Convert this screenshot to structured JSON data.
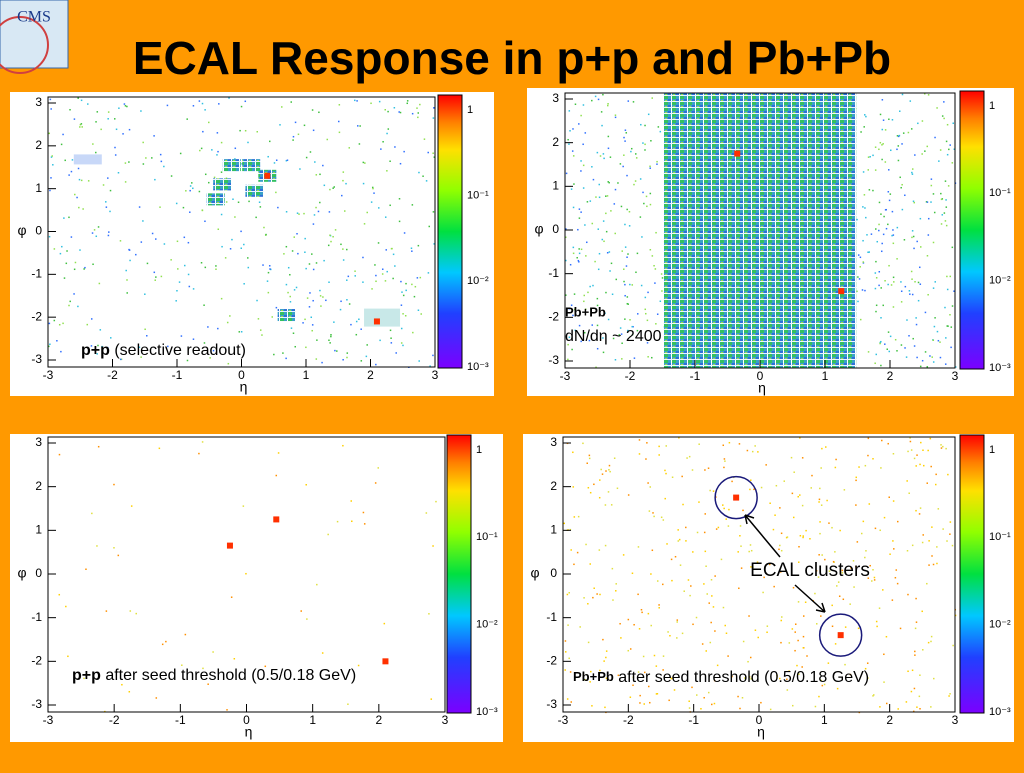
{
  "header": {
    "logo": "CMS",
    "title": "ECAL Response in p+p and Pb+Pb"
  },
  "panels": [
    {
      "x_label": "η",
      "y_label": "φ",
      "x_ticks": [
        -3,
        -2,
        -1,
        0,
        1,
        2,
        3
      ],
      "y_ticks": [
        3,
        2,
        1,
        0,
        -1,
        -2,
        -3
      ],
      "colorbar_ticks": [
        "1",
        "10⁻¹",
        "10⁻²",
        "10⁻³"
      ],
      "label_bold": "p+p",
      "label_text": " (selective readout)"
    },
    {
      "x_label": "η",
      "y_label": "φ",
      "x_ticks": [
        -3,
        -2,
        -1,
        0,
        1,
        2,
        3
      ],
      "y_ticks": [
        3,
        2,
        1,
        0,
        -1,
        -2,
        -3
      ],
      "colorbar_ticks": [
        "1",
        "10⁻¹",
        "10⁻²",
        "10⁻³"
      ],
      "label_bold": "Pb+Pb",
      "label_text": "dN/dη ~ 2400"
    },
    {
      "x_label": "η",
      "y_label": "φ",
      "x_ticks": [
        -3,
        -2,
        -1,
        0,
        1,
        2,
        3
      ],
      "y_ticks": [
        3,
        2,
        1,
        0,
        -1,
        -2,
        -3
      ],
      "colorbar_ticks": [
        "1",
        "10⁻¹",
        "10⁻²",
        "10⁻³"
      ],
      "label_bold": "p+p",
      "label_text": " after seed threshold (0.5/0.18 GeV)"
    },
    {
      "x_label": "η",
      "y_label": "φ",
      "x_ticks": [
        -3,
        -2,
        -1,
        0,
        1,
        2,
        3
      ],
      "y_ticks": [
        3,
        2,
        1,
        0,
        -1,
        -2,
        -3
      ],
      "colorbar_ticks": [
        "1",
        "10⁻¹",
        "10⁻²",
        "10⁻³"
      ],
      "label_bold": "Pb+Pb",
      "label_text": " after seed threshold (0.5/0.18 GeV)",
      "callout": "ECAL clusters"
    }
  ]
}
